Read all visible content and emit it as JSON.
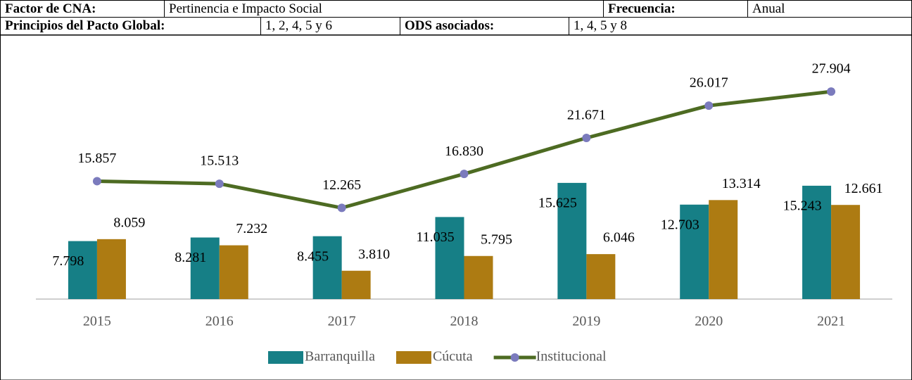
{
  "header": {
    "rows": [
      [
        "Factor de CNA:",
        "Pertinencia e Impacto Social",
        "Frecuencia:",
        "Anual"
      ],
      [
        "Principios del Pacto Global:",
        "1, 2, 4, 5 y 6",
        "ODS asociados:",
        "1, 4, 5 y 8"
      ]
    ]
  },
  "chart_data": {
    "type": "bar_line",
    "categories": [
      "2015",
      "2016",
      "2017",
      "2018",
      "2019",
      "2020",
      "2021"
    ],
    "ylim": [
      0,
      30000
    ],
    "series": [
      {
        "name": "Barranquilla",
        "type": "bar",
        "color": "#167f86",
        "values": [
          7798,
          8281,
          8455,
          11035,
          15625,
          12703,
          15243
        ],
        "value_labels": [
          "7.798",
          "8.281",
          "8.455",
          "11.035",
          "15.625",
          "12.703",
          "15.243"
        ]
      },
      {
        "name": "Cúcuta",
        "type": "bar",
        "color": "#ad7b12",
        "values": [
          8059,
          7232,
          3810,
          5795,
          6046,
          13314,
          12661
        ],
        "value_labels": [
          "8.059",
          "7.232",
          "3.810",
          "5.795",
          "6.046",
          "13.314",
          "12.661"
        ]
      },
      {
        "name": "Institucional",
        "type": "line",
        "color": "#4d6b22",
        "marker_color": "#7b7bbd",
        "values": [
          15857,
          15513,
          12265,
          16830,
          21671,
          26017,
          27904
        ],
        "value_labels": [
          "15.857",
          "15.513",
          "12.265",
          "16.830",
          "21.671",
          "26.017",
          "27.904"
        ]
      }
    ]
  }
}
